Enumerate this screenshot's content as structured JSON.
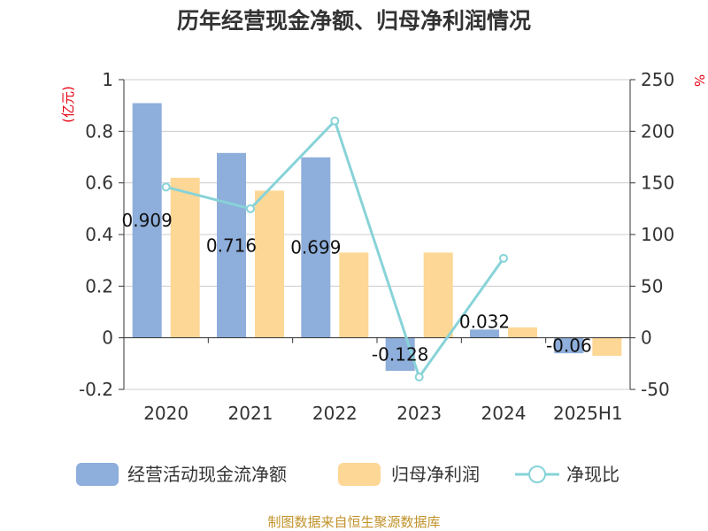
{
  "chart_data": {
    "type": "bar",
    "title": "历年经营现金净额、归母净利润情况",
    "left_unit": "(亿元)",
    "right_unit": "%",
    "categories": [
      "2020",
      "2021",
      "2022",
      "2023",
      "2024",
      "2025H1"
    ],
    "series": [
      {
        "name": "经营活动现金流净额",
        "kind": "bar",
        "axis": "left",
        "color": "#8eaedb",
        "values": [
          0.909,
          0.716,
          0.699,
          -0.128,
          0.032,
          -0.06
        ],
        "labels": [
          "0.909",
          "0.716",
          "0.699",
          "-0.128",
          "0.032",
          "-0.06"
        ]
      },
      {
        "name": "归母净利润",
        "kind": "bar",
        "axis": "left",
        "color": "#fdd795",
        "values": [
          0.62,
          0.57,
          0.33,
          0.33,
          0.04,
          -0.07
        ]
      },
      {
        "name": "净现比",
        "kind": "line",
        "axis": "right",
        "color": "#87d3d8",
        "values": [
          146,
          125,
          210,
          -38,
          77,
          null
        ]
      }
    ],
    "y_left": {
      "min": -0.2,
      "max": 1,
      "ticks": [
        "-0.2",
        "0",
        "0.2",
        "0.4",
        "0.6",
        "0.8",
        "1"
      ]
    },
    "y_right": {
      "min": -50,
      "max": 250,
      "ticks": [
        "-50",
        "0",
        "50",
        "100",
        "150",
        "200",
        "250"
      ]
    },
    "grid": true,
    "legend_position": "bottom"
  },
  "source": "制图数据来自恒生聚源数据库"
}
